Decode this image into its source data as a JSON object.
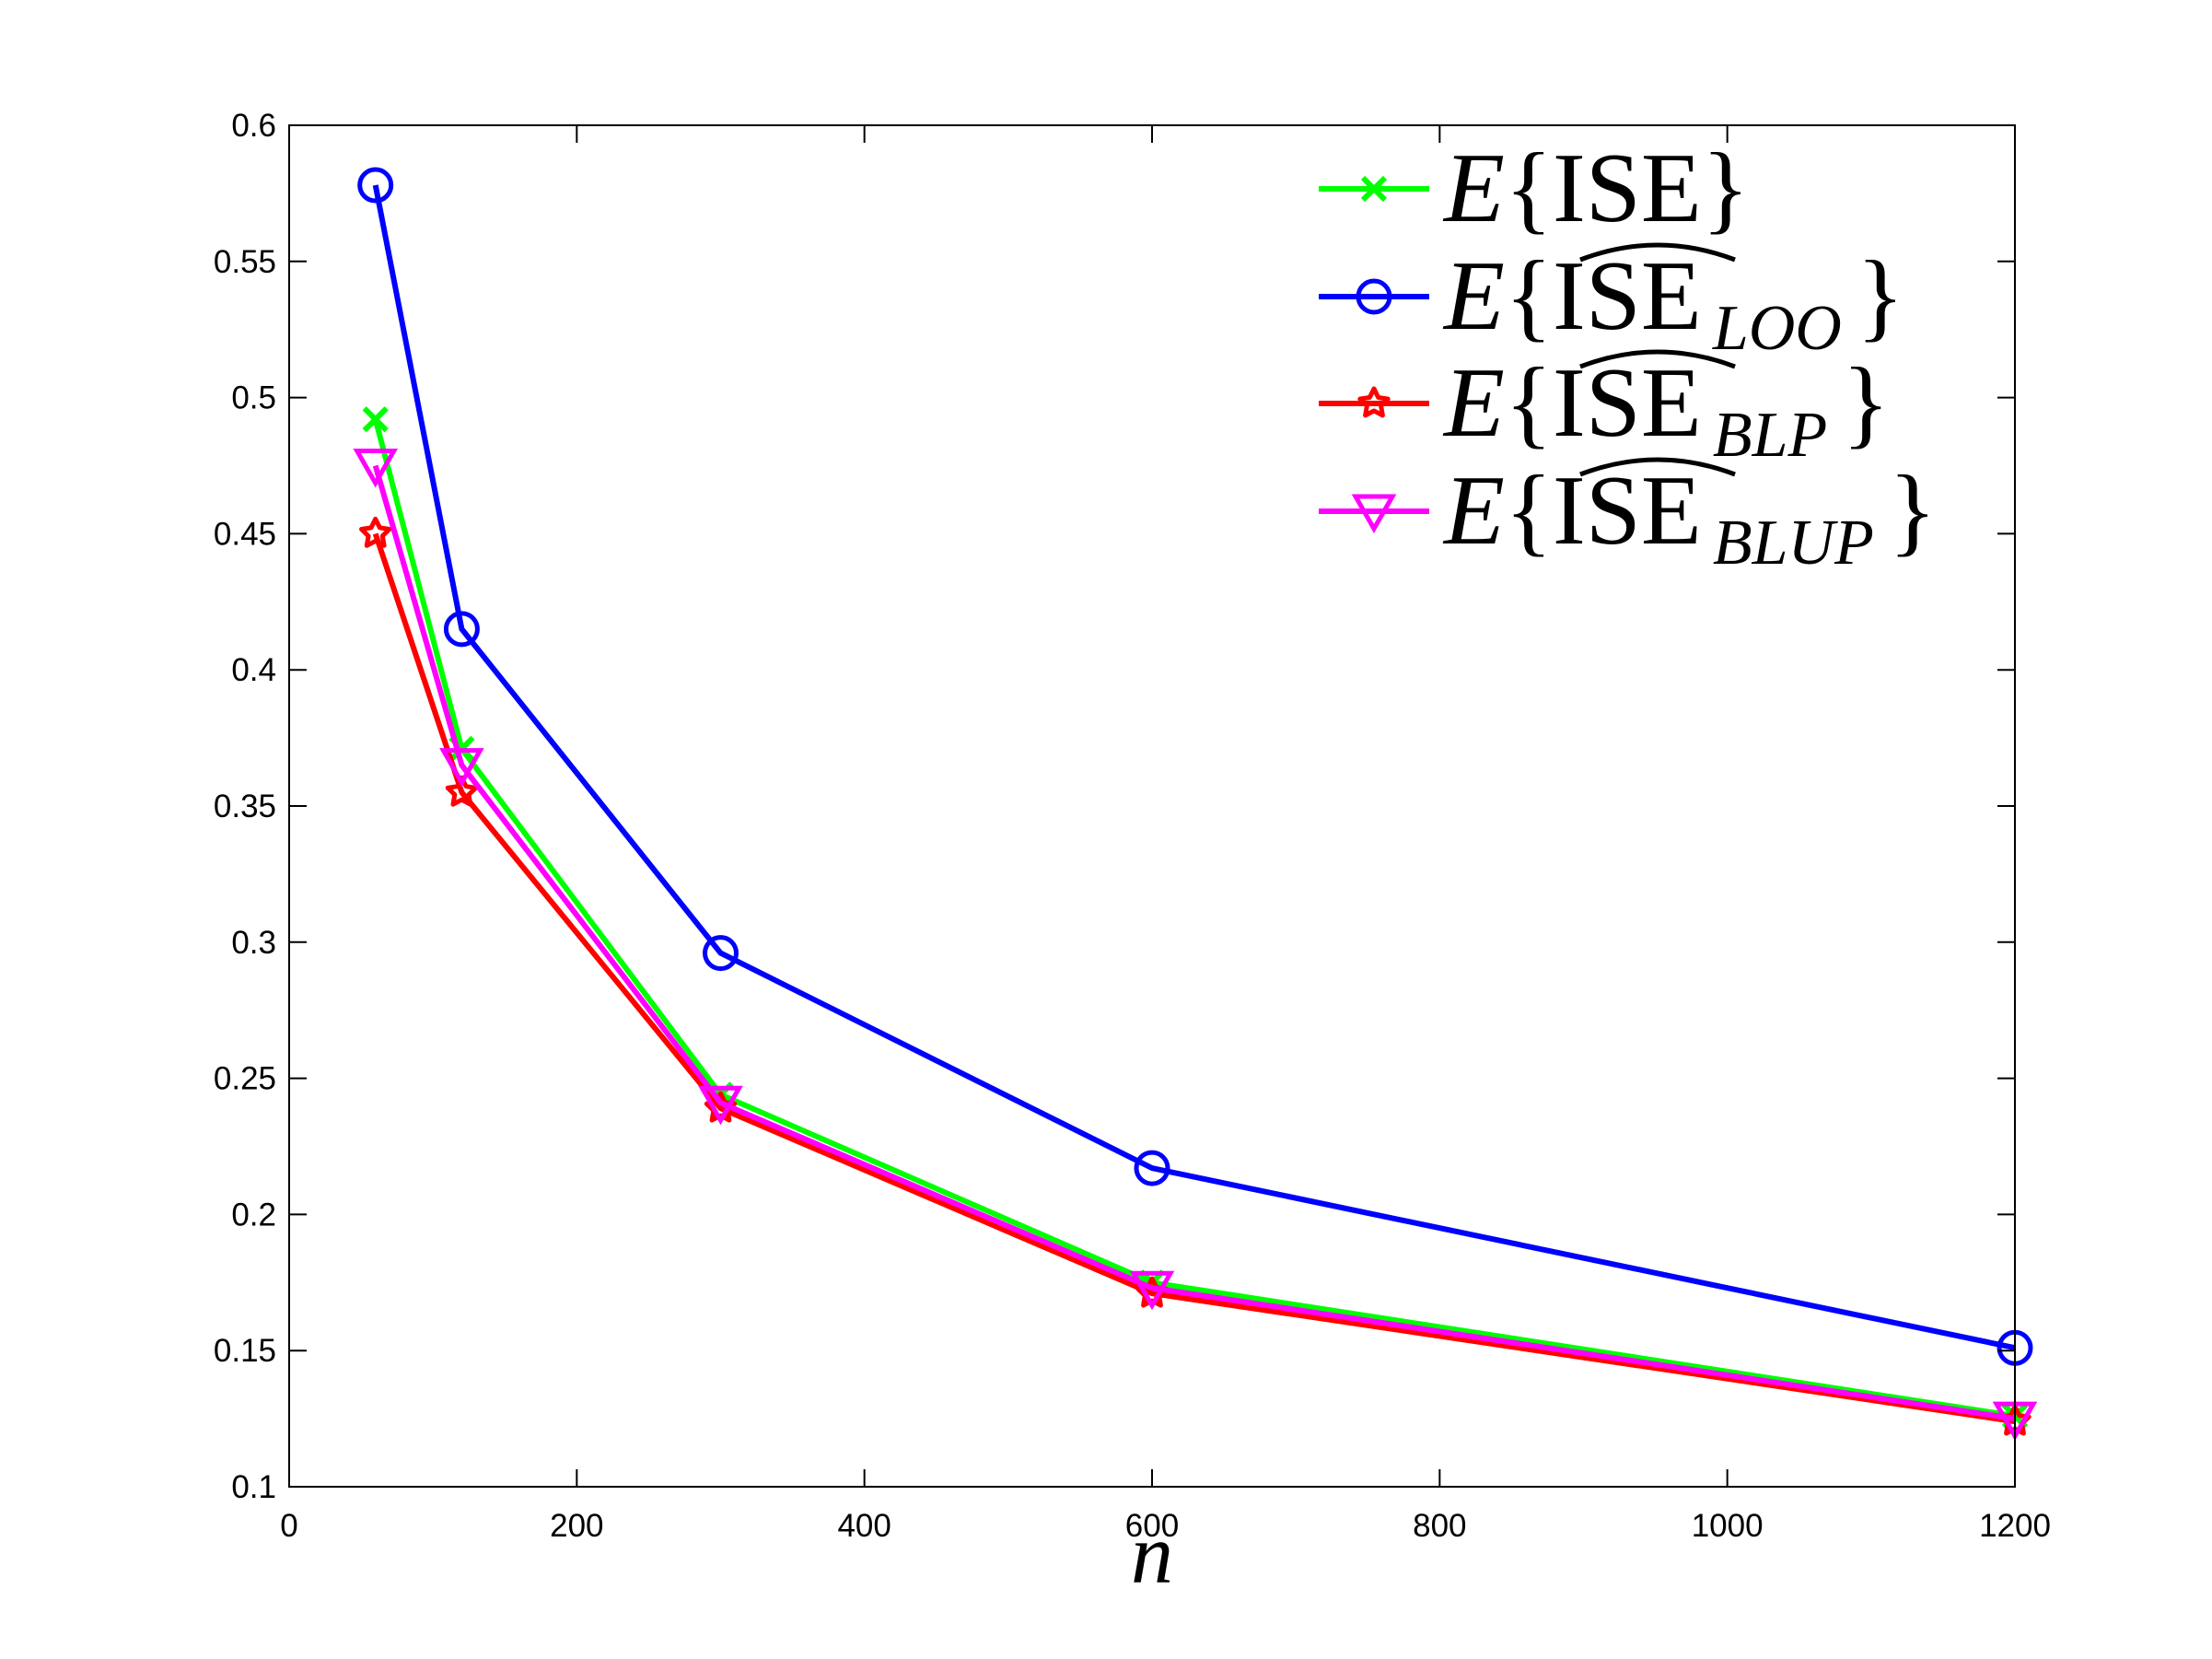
{
  "chart_data": {
    "type": "line",
    "xlabel": "n",
    "ylabel": "",
    "title": "",
    "xlim": [
      0,
      1200
    ],
    "ylim": [
      0.1,
      0.6
    ],
    "xticks": [
      0,
      200,
      400,
      600,
      800,
      1000,
      1200
    ],
    "yticks": [
      0.1,
      0.15,
      0.2,
      0.25,
      0.3,
      0.35,
      0.4,
      0.45,
      0.5,
      0.55,
      0.6
    ],
    "xtick_labels": [
      "0",
      "200",
      "400",
      "600",
      "800",
      "1000",
      "1200"
    ],
    "ytick_labels": [
      "0.1",
      "0.15",
      "0.2",
      "0.25",
      "0.3",
      "0.35",
      "0.4",
      "0.45",
      "0.5",
      "0.55",
      "0.6"
    ],
    "grid": false,
    "legend_position": "top-right",
    "x": [
      60,
      120,
      300,
      600,
      1200
    ],
    "series": [
      {
        "name": "E{ISE}",
        "legend": {
          "prefix": "E{",
          "main": "ISE",
          "sub": "",
          "suffix": "}",
          "hat": false
        },
        "color": "#00ff00",
        "marker": "x",
        "values": [
          0.492,
          0.371,
          0.244,
          0.175,
          0.126
        ]
      },
      {
        "name": "E{ISE_LOO}",
        "legend": {
          "prefix": "E{",
          "main": "ISE",
          "sub": "LOO",
          "suffix": "}",
          "hat": true
        },
        "color": "#0000ff",
        "marker": "circle",
        "values": [
          0.578,
          0.415,
          0.296,
          0.217,
          0.151
        ]
      },
      {
        "name": "E{ISE_BLP}",
        "legend": {
          "prefix": "E{",
          "main": "ISE",
          "sub": "BLP",
          "suffix": "}",
          "hat": true
        },
        "color": "#ff0000",
        "marker": "star",
        "values": [
          0.45,
          0.355,
          0.239,
          0.171,
          0.124
        ]
      },
      {
        "name": "E{ISE_BLUP}",
        "legend": {
          "prefix": "E{",
          "main": "ISE",
          "sub": "BLUP",
          "suffix": "}",
          "hat": true
        },
        "color": "#ff00ff",
        "marker": "triangle-down",
        "values": [
          0.475,
          0.365,
          0.241,
          0.173,
          0.125
        ]
      }
    ]
  }
}
